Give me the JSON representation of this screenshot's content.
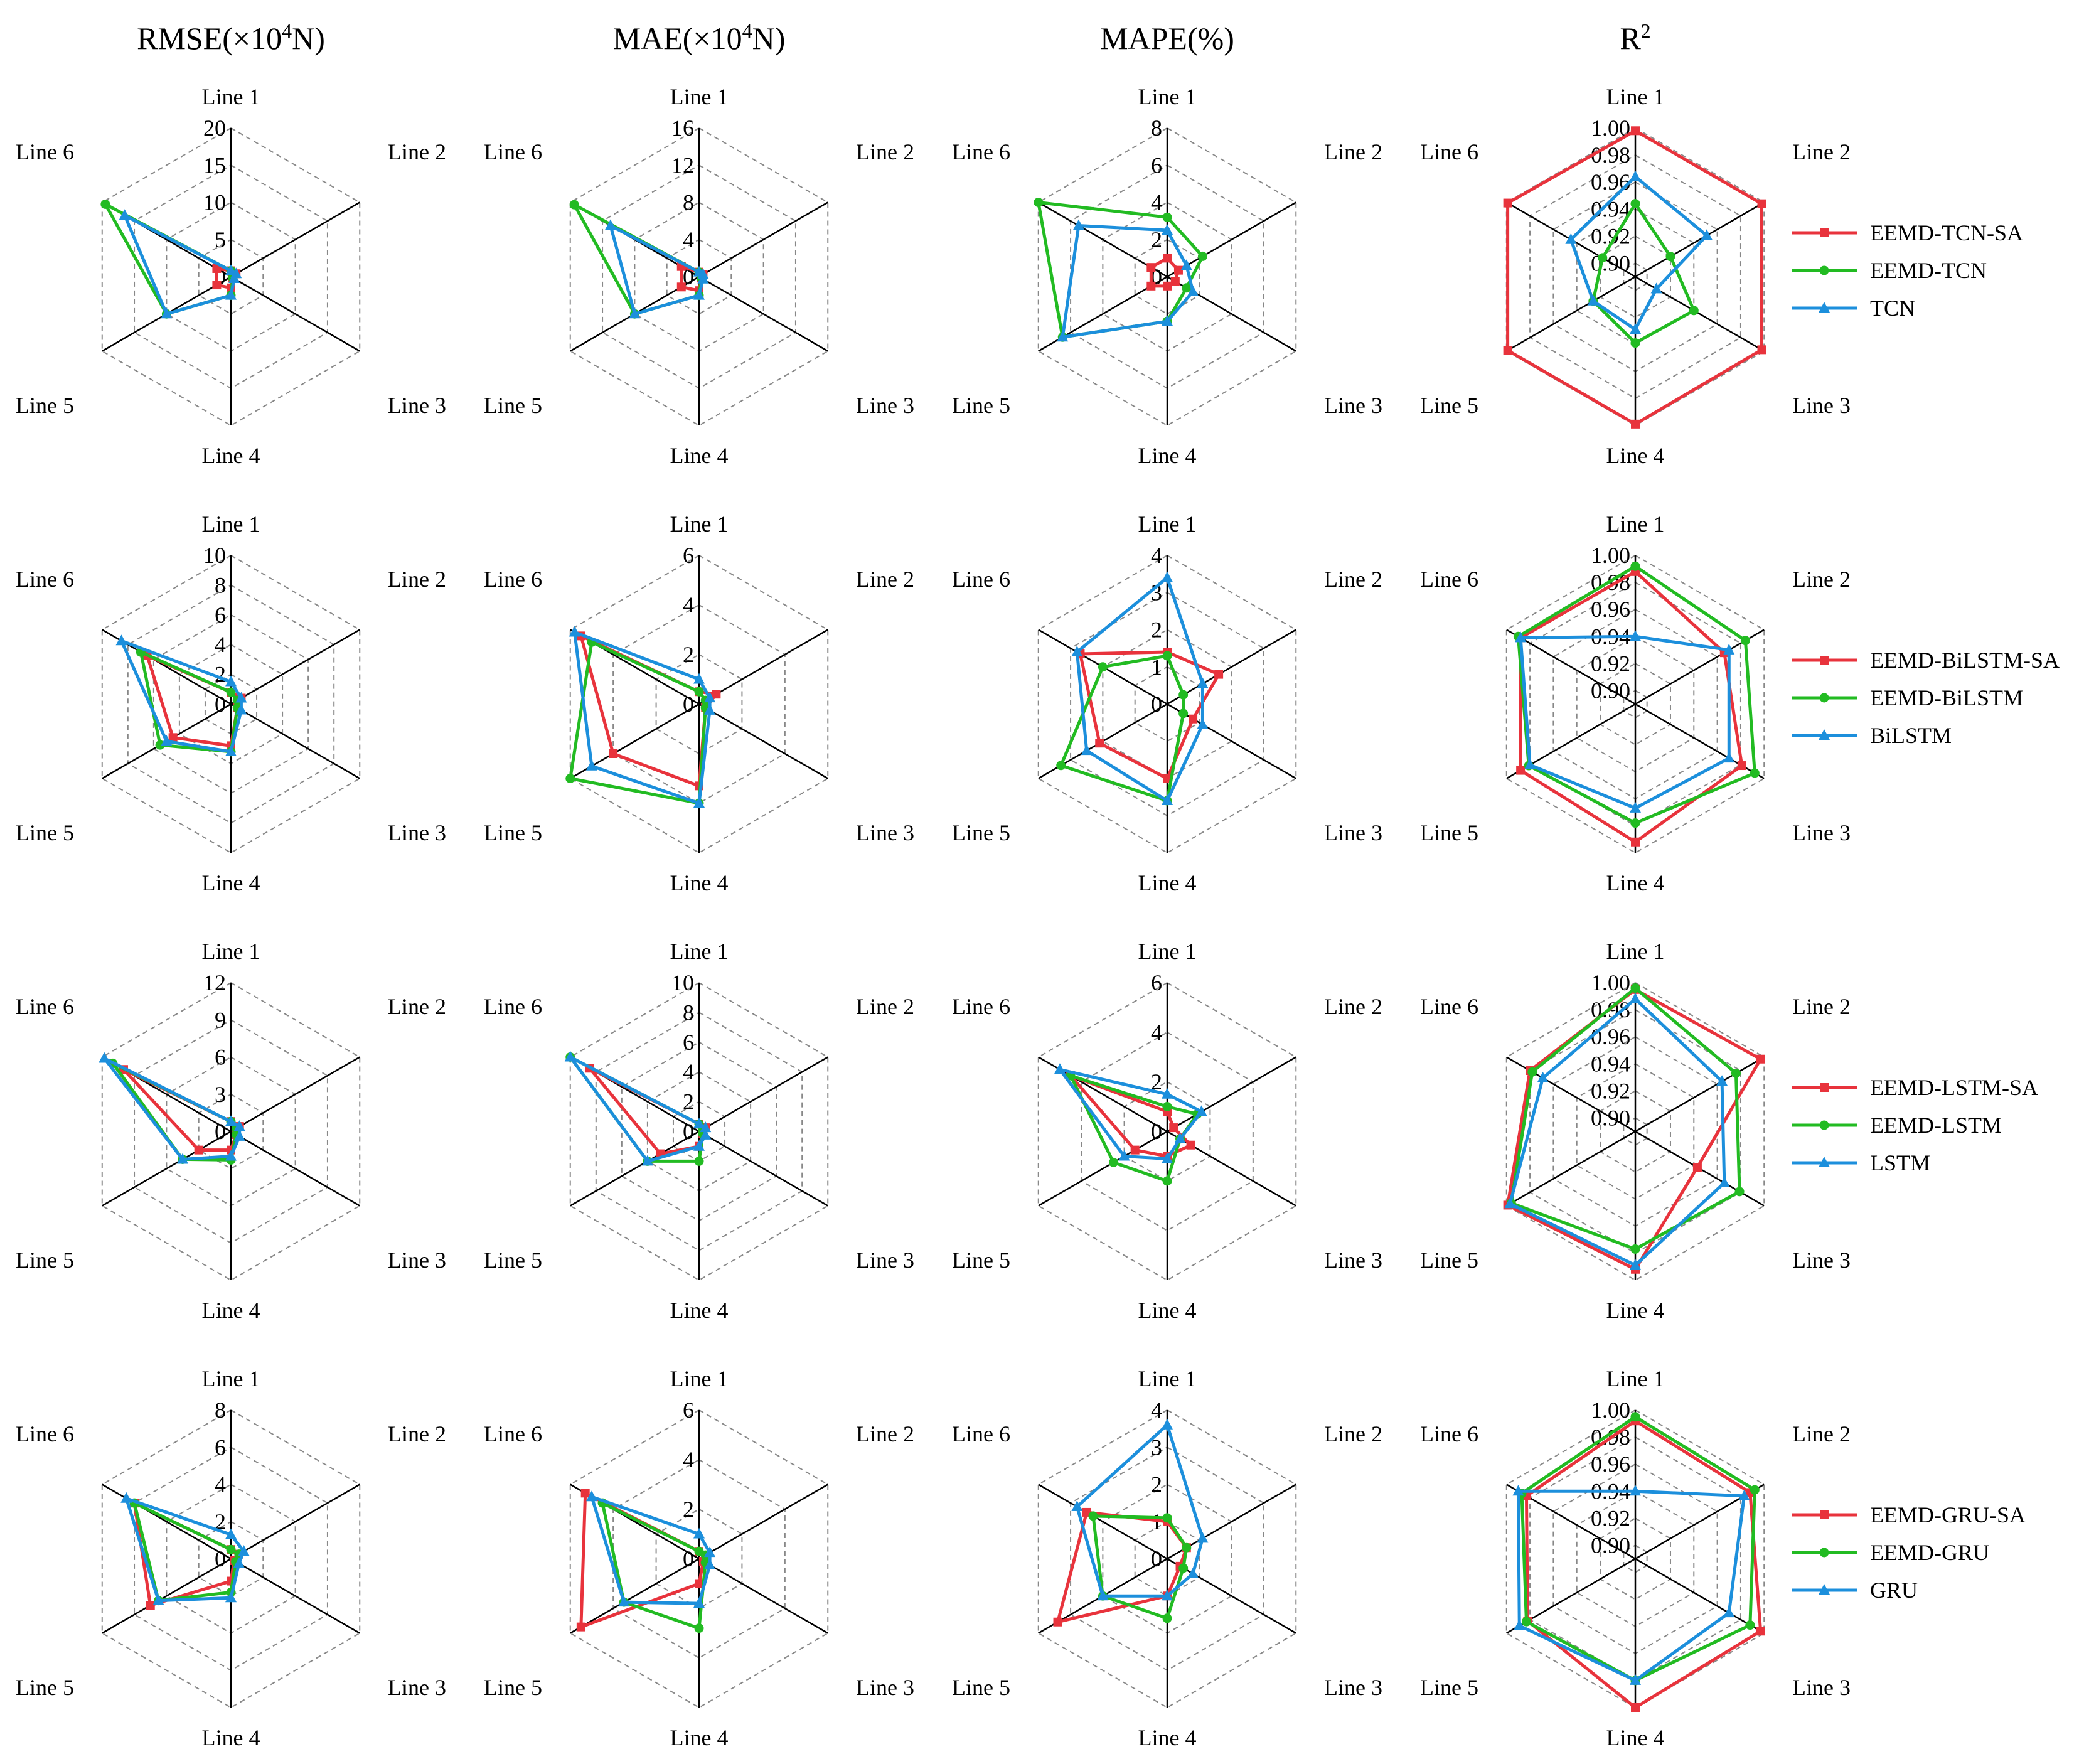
{
  "figure": {
    "column_titles": [
      {
        "main": "RMSE(×10",
        "sup": "4",
        "tail": "N)"
      },
      {
        "main": "MAE(×10",
        "sup": "4",
        "tail": "N)"
      },
      {
        "main": "MAPE(%)",
        "sup": "",
        "tail": ""
      },
      {
        "main": "R",
        "sup": "2",
        "tail": ""
      }
    ],
    "axis_labels": [
      "Line 1",
      "Line 2",
      "Line 3",
      "Line 4",
      "Line 5",
      "Line 6"
    ],
    "colors": {
      "sa": "#e8333c",
      "eemd": "#22bb22",
      "base": "#1c8fdc",
      "grid": "#888888",
      "axis": "#000000"
    },
    "markers": {
      "sa": "square",
      "eemd": "circle",
      "base": "triangle"
    }
  },
  "chart_data": [
    {
      "type": "radar",
      "row": 0,
      "col": 0,
      "metric": "RMSE",
      "ticks": [
        "0",
        "5",
        "10",
        "15",
        "20"
      ],
      "rmin": 0,
      "rmax": 20,
      "axes": [
        "Line 1",
        "Line 2",
        "Line 3",
        "Line 4",
        "Line 5",
        "Line 6"
      ],
      "series": [
        {
          "name": "EEMD-TCN-SA",
          "values": [
            0.8,
            0.8,
            0.3,
            1.5,
            2.2,
            2.2
          ]
        },
        {
          "name": "EEMD-TCN",
          "values": [
            0.8,
            0.5,
            0.3,
            2.5,
            10.0,
            19.5
          ]
        },
        {
          "name": "TCN",
          "values": [
            0.8,
            0.8,
            0.5,
            2.5,
            10.0,
            16.5
          ]
        }
      ]
    },
    {
      "type": "radar",
      "row": 0,
      "col": 1,
      "metric": "MAE",
      "ticks": [
        "0",
        "4",
        "8",
        "12",
        "16"
      ],
      "rmin": 0,
      "rmax": 16,
      "axes": [
        "Line 1",
        "Line 2",
        "Line 3",
        "Line 4",
        "Line 5",
        "Line 6"
      ],
      "series": [
        {
          "name": "EEMD-TCN-SA",
          "values": [
            0.5,
            0.5,
            0.3,
            1.5,
            2.2,
            2.2
          ]
        },
        {
          "name": "EEMD-TCN",
          "values": [
            0.5,
            0.3,
            0.3,
            2.0,
            8.0,
            15.5
          ]
        },
        {
          "name": "TCN",
          "values": [
            0.5,
            0.5,
            0.5,
            2.0,
            8.0,
            11.0
          ]
        }
      ]
    },
    {
      "type": "radar",
      "row": 0,
      "col": 2,
      "metric": "MAPE",
      "ticks": [
        "0",
        "2",
        "4",
        "6",
        "8"
      ],
      "rmin": 0,
      "rmax": 8,
      "axes": [
        "Line 1",
        "Line 2",
        "Line 3",
        "Line 4",
        "Line 5",
        "Line 6"
      ],
      "series": [
        {
          "name": "EEMD-TCN-SA",
          "values": [
            1.0,
            0.7,
            0.5,
            0.5,
            1.0,
            1.0
          ]
        },
        {
          "name": "EEMD-TCN",
          "values": [
            3.2,
            2.2,
            1.2,
            2.4,
            6.5,
            8.5
          ]
        },
        {
          "name": "TCN",
          "values": [
            2.5,
            1.2,
            1.6,
            2.4,
            6.5,
            5.5
          ]
        }
      ]
    },
    {
      "type": "radar",
      "row": 0,
      "col": 3,
      "metric": "R2",
      "ticks": [
        "0.90",
        "0.92",
        "0.94",
        "0.96",
        "0.98",
        "1.00"
      ],
      "rmin": 0.89,
      "rmax": 1.0,
      "axes": [
        "Line 1",
        "Line 2",
        "Line 3",
        "Line 4",
        "Line 5",
        "Line 6"
      ],
      "series": [
        {
          "name": "EEMD-TCN-SA",
          "values": [
            0.998,
            0.998,
            0.998,
            0.999,
            0.999,
            0.999
          ]
        },
        {
          "name": "EEMD-TCN",
          "values": [
            0.944,
            0.92,
            0.94,
            0.939,
            0.926,
            0.918
          ]
        },
        {
          "name": "TCN",
          "values": [
            0.964,
            0.951,
            0.908,
            0.929,
            0.926,
            0.945
          ]
        }
      ]
    },
    {
      "type": "radar",
      "row": 1,
      "col": 0,
      "metric": "RMSE",
      "ticks": [
        "0",
        "2",
        "4",
        "6",
        "8",
        "10"
      ],
      "rmin": 0,
      "rmax": 10,
      "axes": [
        "Line 1",
        "Line 2",
        "Line 3",
        "Line 4",
        "Line 5",
        "Line 6"
      ],
      "series": [
        {
          "name": "EEMD-BiLSTM-SA",
          "values": [
            0.8,
            0.8,
            0.5,
            2.8,
            4.5,
            6.5
          ]
        },
        {
          "name": "EEMD-BiLSTM",
          "values": [
            0.8,
            0.5,
            0.5,
            3.2,
            5.5,
            7.0
          ]
        },
        {
          "name": "BiLSTM",
          "values": [
            1.5,
            0.8,
            0.8,
            3.2,
            5.0,
            8.5
          ]
        }
      ]
    },
    {
      "type": "radar",
      "row": 1,
      "col": 1,
      "metric": "MAE",
      "ticks": [
        "0",
        "2",
        "4",
        "6"
      ],
      "rmin": 0,
      "rmax": 6,
      "axes": [
        "Line 1",
        "Line 2",
        "Line 3",
        "Line 4",
        "Line 5",
        "Line 6"
      ],
      "series": [
        {
          "name": "EEMD-BiLSTM-SA",
          "values": [
            0.5,
            0.8,
            0.3,
            3.3,
            4.0,
            5.5
          ]
        },
        {
          "name": "EEMD-BiLSTM",
          "values": [
            0.5,
            0.3,
            0.3,
            4.0,
            6.0,
            5.0
          ]
        },
        {
          "name": "BiLSTM",
          "values": [
            1.0,
            0.5,
            0.5,
            4.0,
            5.0,
            5.8
          ]
        }
      ]
    },
    {
      "type": "radar",
      "row": 1,
      "col": 2,
      "metric": "MAPE",
      "ticks": [
        "0",
        "1",
        "2",
        "3",
        "4"
      ],
      "rmin": 0,
      "rmax": 4,
      "axes": [
        "Line 1",
        "Line 2",
        "Line 3",
        "Line 4",
        "Line 5",
        "Line 6"
      ],
      "series": [
        {
          "name": "EEMD-BiLSTM-SA",
          "values": [
            1.4,
            1.6,
            0.8,
            2.0,
            2.1,
            2.7
          ]
        },
        {
          "name": "EEMD-BiLSTM",
          "values": [
            1.3,
            0.5,
            0.5,
            2.6,
            3.3,
            2.0
          ]
        },
        {
          "name": "BiLSTM",
          "values": [
            3.4,
            1.1,
            1.1,
            2.6,
            2.5,
            2.8
          ]
        }
      ]
    },
    {
      "type": "radar",
      "row": 1,
      "col": 3,
      "metric": "R2",
      "ticks": [
        "0.90",
        "0.92",
        "0.94",
        "0.96",
        "0.98",
        "1.00"
      ],
      "rmin": 0.89,
      "rmax": 1.0,
      "axes": [
        "Line 1",
        "Line 2",
        "Line 3",
        "Line 4",
        "Line 5",
        "Line 6"
      ],
      "series": [
        {
          "name": "EEMD-BiLSTM-SA",
          "values": [
            0.988,
            0.966,
            0.981,
            0.992,
            0.988,
            0.988
          ]
        },
        {
          "name": "EEMD-BiLSTM",
          "values": [
            0.992,
            0.984,
            0.992,
            0.978,
            0.981,
            0.99
          ]
        },
        {
          "name": "BiLSTM",
          "values": [
            0.94,
            0.97,
            0.97,
            0.967,
            0.98,
            0.988
          ]
        }
      ]
    },
    {
      "type": "radar",
      "row": 2,
      "col": 0,
      "metric": "RMSE",
      "ticks": [
        "0",
        "3",
        "6",
        "9",
        "12"
      ],
      "rmin": 0,
      "rmax": 12,
      "axes": [
        "Line 1",
        "Line 2",
        "Line 3",
        "Line 4",
        "Line 5",
        "Line 6"
      ],
      "series": [
        {
          "name": "EEMD-LSTM-SA",
          "values": [
            0.8,
            0.8,
            0.5,
            1.5,
            3.0,
            10.0
          ]
        },
        {
          "name": "EEMD-LSTM",
          "values": [
            0.8,
            0.5,
            0.5,
            2.3,
            4.5,
            11.0
          ]
        },
        {
          "name": "LSTM",
          "values": [
            0.8,
            0.8,
            0.8,
            2.0,
            4.5,
            11.8
          ]
        }
      ]
    },
    {
      "type": "radar",
      "row": 2,
      "col": 1,
      "metric": "MAE",
      "ticks": [
        "0",
        "2",
        "4",
        "6",
        "8",
        "10"
      ],
      "rmin": 0,
      "rmax": 10,
      "axes": [
        "Line 1",
        "Line 2",
        "Line 3",
        "Line 4",
        "Line 5",
        "Line 6"
      ],
      "series": [
        {
          "name": "EEMD-LSTM-SA",
          "values": [
            0.5,
            0.5,
            0.3,
            1.0,
            3.0,
            8.5
          ]
        },
        {
          "name": "EEMD-LSTM",
          "values": [
            0.5,
            0.3,
            0.3,
            2.0,
            4.0,
            10.0
          ]
        },
        {
          "name": "LSTM",
          "values": [
            0.5,
            0.5,
            0.5,
            1.0,
            4.0,
            10.5
          ]
        }
      ]
    },
    {
      "type": "radar",
      "row": 2,
      "col": 2,
      "metric": "MAPE",
      "ticks": [
        "0",
        "2",
        "4",
        "6"
      ],
      "rmin": 0,
      "rmax": 6,
      "axes": [
        "Line 1",
        "Line 2",
        "Line 3",
        "Line 4",
        "Line 5",
        "Line 6"
      ],
      "series": [
        {
          "name": "EEMD-LSTM-SA",
          "values": [
            0.8,
            0.3,
            1.1,
            1.0,
            1.5,
            4.5
          ]
        },
        {
          "name": "EEMD-LSTM",
          "values": [
            1.0,
            1.4,
            0.6,
            2.0,
            2.5,
            4.5
          ]
        },
        {
          "name": "LSTM",
          "values": [
            1.5,
            1.6,
            0.6,
            1.1,
            2.0,
            5.0
          ]
        }
      ]
    },
    {
      "type": "radar",
      "row": 2,
      "col": 3,
      "metric": "R2",
      "ticks": [
        "0.90",
        "0.92",
        "0.94",
        "0.96",
        "0.98",
        "1.00"
      ],
      "rmin": 0.89,
      "rmax": 1.0,
      "axes": [
        "Line 1",
        "Line 2",
        "Line 3",
        "Line 4",
        "Line 5",
        "Line 6"
      ],
      "series": [
        {
          "name": "EEMD-LSTM-SA",
          "values": [
            0.995,
            0.997,
            0.943,
            0.992,
            0.999,
            0.98
          ]
        },
        {
          "name": "EEMD-LSTM",
          "values": [
            0.996,
            0.976,
            0.979,
            0.977,
            0.996,
            0.978
          ]
        },
        {
          "name": "LSTM",
          "values": [
            0.988,
            0.964,
            0.966,
            0.989,
            0.997,
            0.969
          ]
        }
      ]
    },
    {
      "type": "radar",
      "row": 3,
      "col": 0,
      "metric": "RMSE",
      "ticks": [
        "0",
        "2",
        "4",
        "6",
        "8"
      ],
      "rmin": 0,
      "rmax": 8,
      "axes": [
        "Line 1",
        "Line 2",
        "Line 3",
        "Line 4",
        "Line 5",
        "Line 6"
      ],
      "series": [
        {
          "name": "EEMD-GRU-SA",
          "values": [
            0.5,
            0.5,
            0.2,
            1.2,
            5.0,
            6.0
          ]
        },
        {
          "name": "EEMD-GRU",
          "values": [
            0.5,
            0.5,
            0.3,
            1.8,
            4.5,
            6.0
          ]
        },
        {
          "name": "GRU",
          "values": [
            1.3,
            0.8,
            0.5,
            2.1,
            4.5,
            6.5
          ]
        }
      ]
    },
    {
      "type": "radar",
      "row": 3,
      "col": 1,
      "metric": "MAE",
      "ticks": [
        "0",
        "2",
        "4",
        "6"
      ],
      "rmin": 0,
      "rmax": 6,
      "axes": [
        "Line 1",
        "Line 2",
        "Line 3",
        "Line 4",
        "Line 5",
        "Line 6"
      ],
      "series": [
        {
          "name": "EEMD-GRU-SA",
          "values": [
            0.3,
            0.3,
            0.2,
            1.0,
            5.5,
            5.3
          ]
        },
        {
          "name": "EEMD-GRU",
          "values": [
            0.3,
            0.3,
            0.3,
            2.8,
            3.5,
            4.5
          ]
        },
        {
          "name": "GRU",
          "values": [
            1.0,
            0.5,
            0.5,
            1.8,
            3.5,
            5.0
          ]
        }
      ]
    },
    {
      "type": "radar",
      "row": 3,
      "col": 2,
      "metric": "MAPE",
      "ticks": [
        "0",
        "1",
        "2",
        "3",
        "4"
      ],
      "rmin": 0,
      "rmax": 4,
      "axes": [
        "Line 1",
        "Line 2",
        "Line 3",
        "Line 4",
        "Line 5",
        "Line 6"
      ],
      "series": [
        {
          "name": "EEMD-GRU-SA",
          "values": [
            1.0,
            0.6,
            0.4,
            1.0,
            3.4,
            2.5
          ]
        },
        {
          "name": "EEMD-GRU",
          "values": [
            1.1,
            0.6,
            0.5,
            1.6,
            2.0,
            2.3
          ]
        },
        {
          "name": "GRU",
          "values": [
            3.6,
            1.1,
            0.8,
            1.0,
            2.0,
            2.8
          ]
        }
      ]
    },
    {
      "type": "radar",
      "row": 3,
      "col": 3,
      "metric": "R2",
      "ticks": [
        "0.90",
        "0.92",
        "0.94",
        "0.96",
        "0.98",
        "1.00"
      ],
      "rmin": 0.89,
      "rmax": 1.0,
      "axes": [
        "Line 1",
        "Line 2",
        "Line 3",
        "Line 4",
        "Line 5",
        "Line 6"
      ],
      "series": [
        {
          "name": "EEMD-GRU-SA",
          "values": [
            0.992,
            0.988,
            0.997,
            1.0,
            0.982,
            0.983
          ]
        },
        {
          "name": "EEMD-GRU",
          "values": [
            0.995,
            0.992,
            0.988,
            0.98,
            0.983,
            0.987
          ]
        },
        {
          "name": "GRU",
          "values": [
            0.94,
            0.983,
            0.97,
            0.98,
            0.989,
            0.99
          ]
        }
      ]
    }
  ],
  "legends": [
    {
      "row": 0,
      "items": [
        "EEMD-TCN-SA",
        "EEMD-TCN",
        "TCN"
      ]
    },
    {
      "row": 1,
      "items": [
        "EEMD-BiLSTM-SA",
        "EEMD-BiLSTM",
        "BiLSTM"
      ]
    },
    {
      "row": 2,
      "items": [
        "EEMD-LSTM-SA",
        "EEMD-LSTM",
        "LSTM"
      ]
    },
    {
      "row": 3,
      "items": [
        "EEMD-GRU-SA",
        "EEMD-GRU",
        "GRU"
      ]
    }
  ]
}
